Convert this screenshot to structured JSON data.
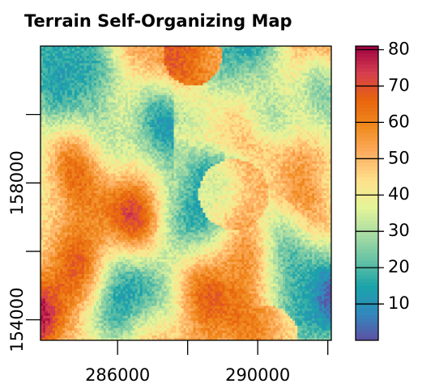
{
  "chart_data": {
    "type": "heatmap",
    "title": "Terrain Self-Organizing Map",
    "xlabel": "",
    "ylabel": "",
    "xlim": [
      283800,
      292100
    ],
    "ylim": [
      153400,
      162000
    ],
    "x_ticks": [
      {
        "value": 286000,
        "label": "286000"
      },
      {
        "value": 288000,
        "label": ""
      },
      {
        "value": 290000,
        "label": "290000"
      },
      {
        "value": 292000,
        "label": ""
      }
    ],
    "y_ticks": [
      {
        "value": 154000,
        "label": "154000"
      },
      {
        "value": 156000,
        "label": ""
      },
      {
        "value": 158000,
        "label": "158000"
      },
      {
        "value": 160000,
        "label": ""
      }
    ],
    "colorbar": {
      "min": 0,
      "max": 81,
      "ticks": [
        10,
        20,
        30,
        40,
        50,
        60,
        70,
        80
      ],
      "palette": [
        "#5e4fa2",
        "#3288bd",
        "#1aa3a9",
        "#66c2a5",
        "#abdda4",
        "#e6f598",
        "#fee08b",
        "#fdae61",
        "#f08a1e",
        "#e8640e",
        "#d53e4f",
        "#9e0142"
      ]
    },
    "grid": {
      "cols": 120,
      "rows": 120,
      "description": "raster of values 0-81 over the map extent"
    }
  }
}
